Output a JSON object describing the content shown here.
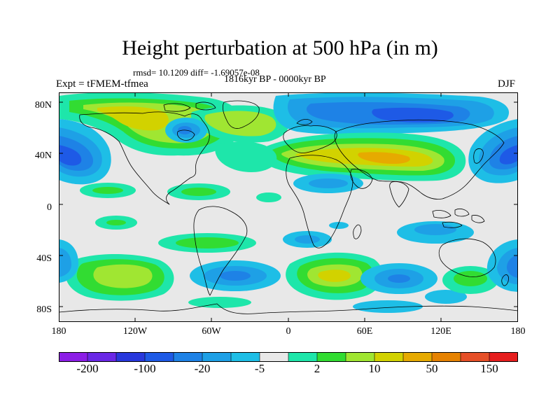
{
  "title": "Height perturbation at 500 hPa (in m)",
  "stats": "rmsd= 10.1209 diff= -1.69057e-08",
  "period": "1816kyr BP - 0000kyr BP",
  "experiment": "Expt = tFMEM-tfmea",
  "season": "DJF",
  "map": {
    "lat_labels": [
      "80N",
      "40N",
      "0",
      "40S",
      "80S"
    ],
    "lon_labels": [
      "180",
      "120W",
      "60W",
      "0",
      "60E",
      "120E",
      "180"
    ],
    "background_color": "#e8e8e8"
  },
  "colorbar": {
    "colors": [
      "#8c1ee6",
      "#6a28e6",
      "#2838dc",
      "#1e5ae6",
      "#1e82e6",
      "#1ea0e6",
      "#1ebee6",
      "#e8e8e8",
      "#1ee6aa",
      "#32dc32",
      "#a0e632",
      "#d2d200",
      "#e6aa00",
      "#e68200",
      "#e65028",
      "#e61e1e"
    ],
    "labels": [
      "-200",
      "-100",
      "-20",
      "-5",
      "2",
      "10",
      "50",
      "150"
    ]
  }
}
